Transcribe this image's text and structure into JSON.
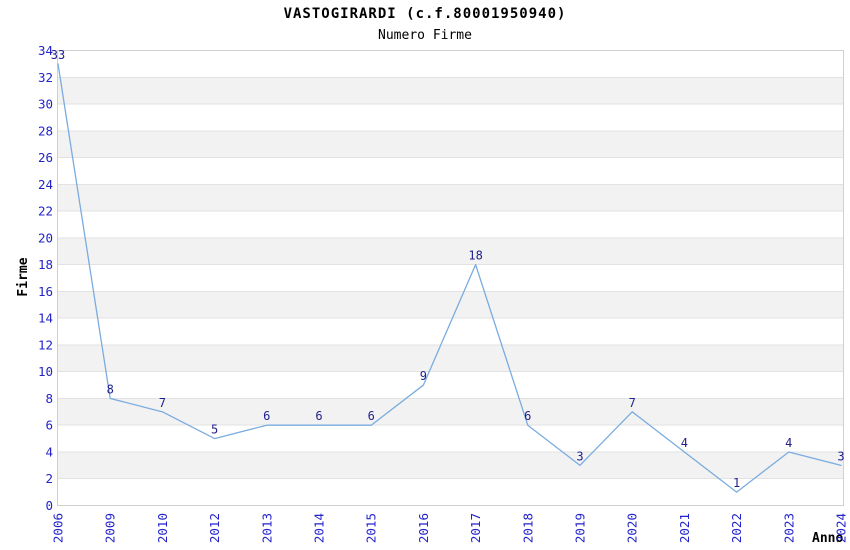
{
  "header": {
    "title": "VASTOGIRARDI (c.f.80001950940)",
    "subtitle": "Numero Firme"
  },
  "chart_data": {
    "type": "line",
    "title": "VASTOGIRARDI (c.f.80001950940)",
    "subtitle": "Numero Firme",
    "xlabel": "Anno",
    "ylabel": "Firme",
    "categories": [
      "2006",
      "2009",
      "2010",
      "2012",
      "2013",
      "2014",
      "2015",
      "2016",
      "2017",
      "2018",
      "2019",
      "2020",
      "2021",
      "2022",
      "2023",
      "2024"
    ],
    "values": [
      33,
      8,
      7,
      5,
      6,
      6,
      6,
      9,
      18,
      6,
      3,
      7,
      4,
      1,
      4,
      3
    ],
    "ylim": [
      0,
      34
    ],
    "ytick_step": 2,
    "grid": true,
    "legend": "none",
    "colors": {
      "line": "#7aacdf",
      "tick_labels": "#2323cc",
      "point_labels": "#1f1f8c",
      "band_fill": "#f2f2f2",
      "gridline": "#e2e2e2",
      "plot_border": "#d0d0d0",
      "background": "#ffffff",
      "text": "#000000"
    }
  }
}
